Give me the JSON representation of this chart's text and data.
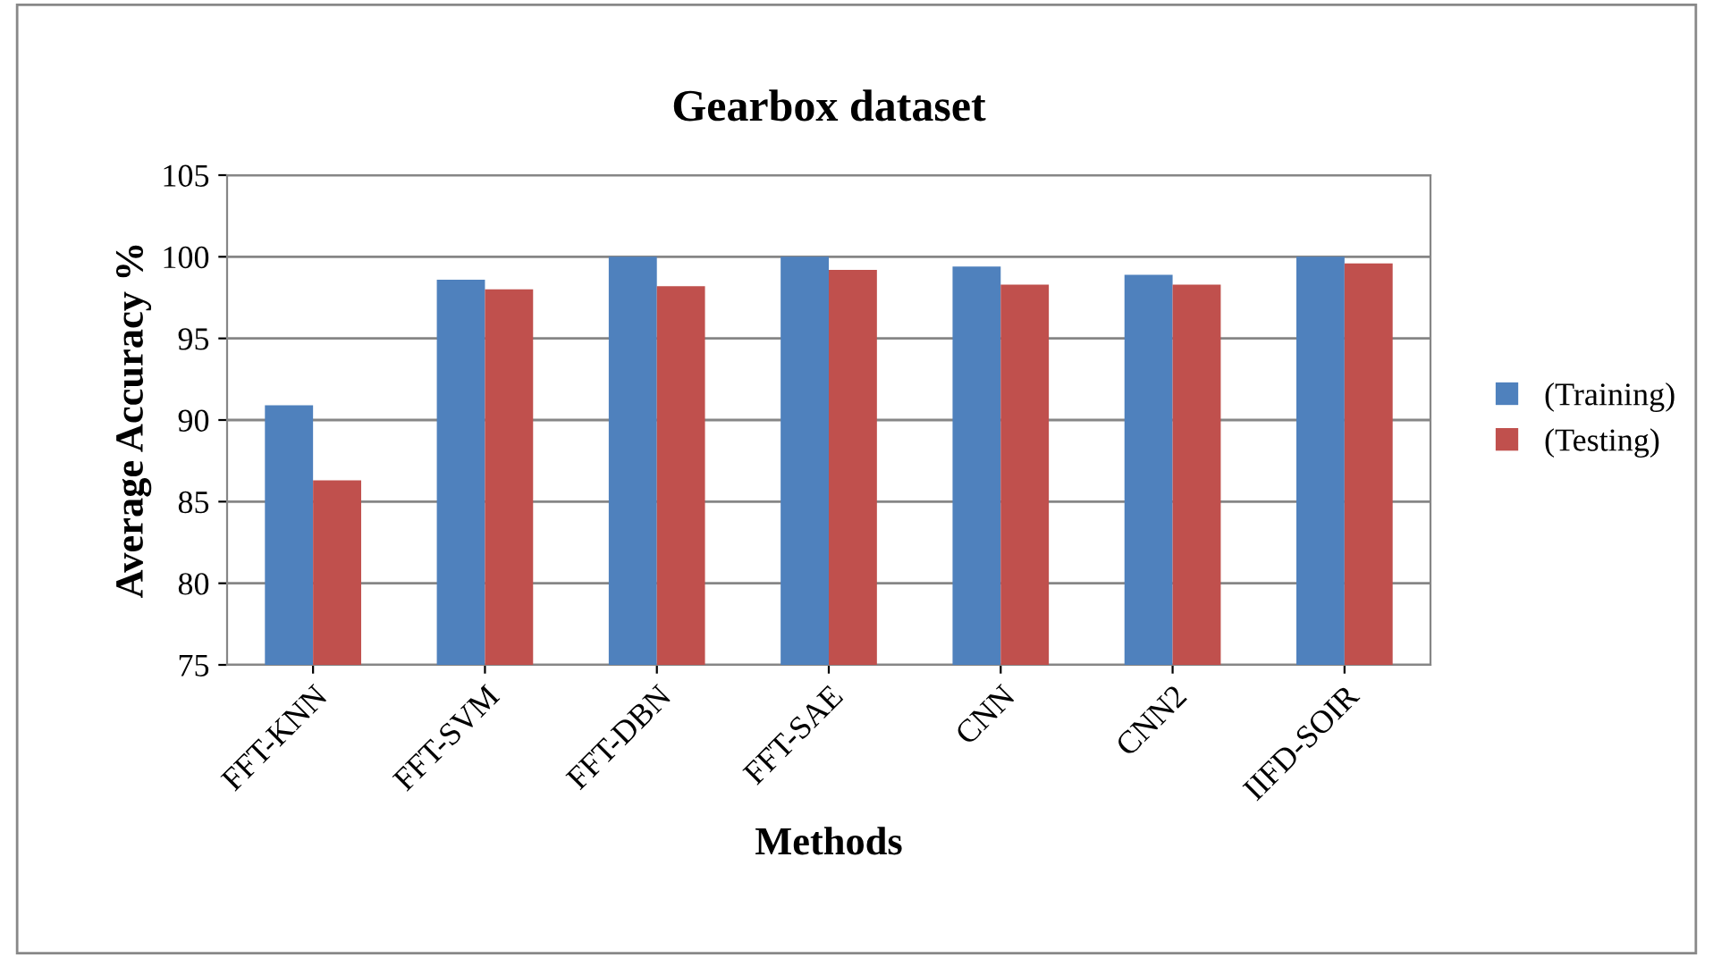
{
  "chart_data": {
    "type": "bar",
    "title": "Gearbox dataset",
    "xlabel": "Methods",
    "ylabel": "Average Accuracy %",
    "categories": [
      "FFT-KNN",
      "FFT-SVM",
      "FFT-DBN",
      "FFT-SAE",
      "CNN",
      "CNN2",
      "IIFD-SOIR"
    ],
    "series": [
      {
        "name": "(Training)",
        "color": "#4f81bd",
        "values": [
          90.9,
          98.6,
          100,
          100,
          99.4,
          98.9,
          100
        ]
      },
      {
        "name": "(Testing)",
        "color": "#c0504d",
        "values": [
          86.3,
          98.0,
          98.2,
          99.2,
          98.3,
          98.3,
          99.6
        ]
      }
    ],
    "ylim": [
      75,
      105
    ],
    "yticks": [
      75,
      80,
      85,
      90,
      95,
      100,
      105
    ],
    "grid": "y",
    "legend": "right"
  }
}
